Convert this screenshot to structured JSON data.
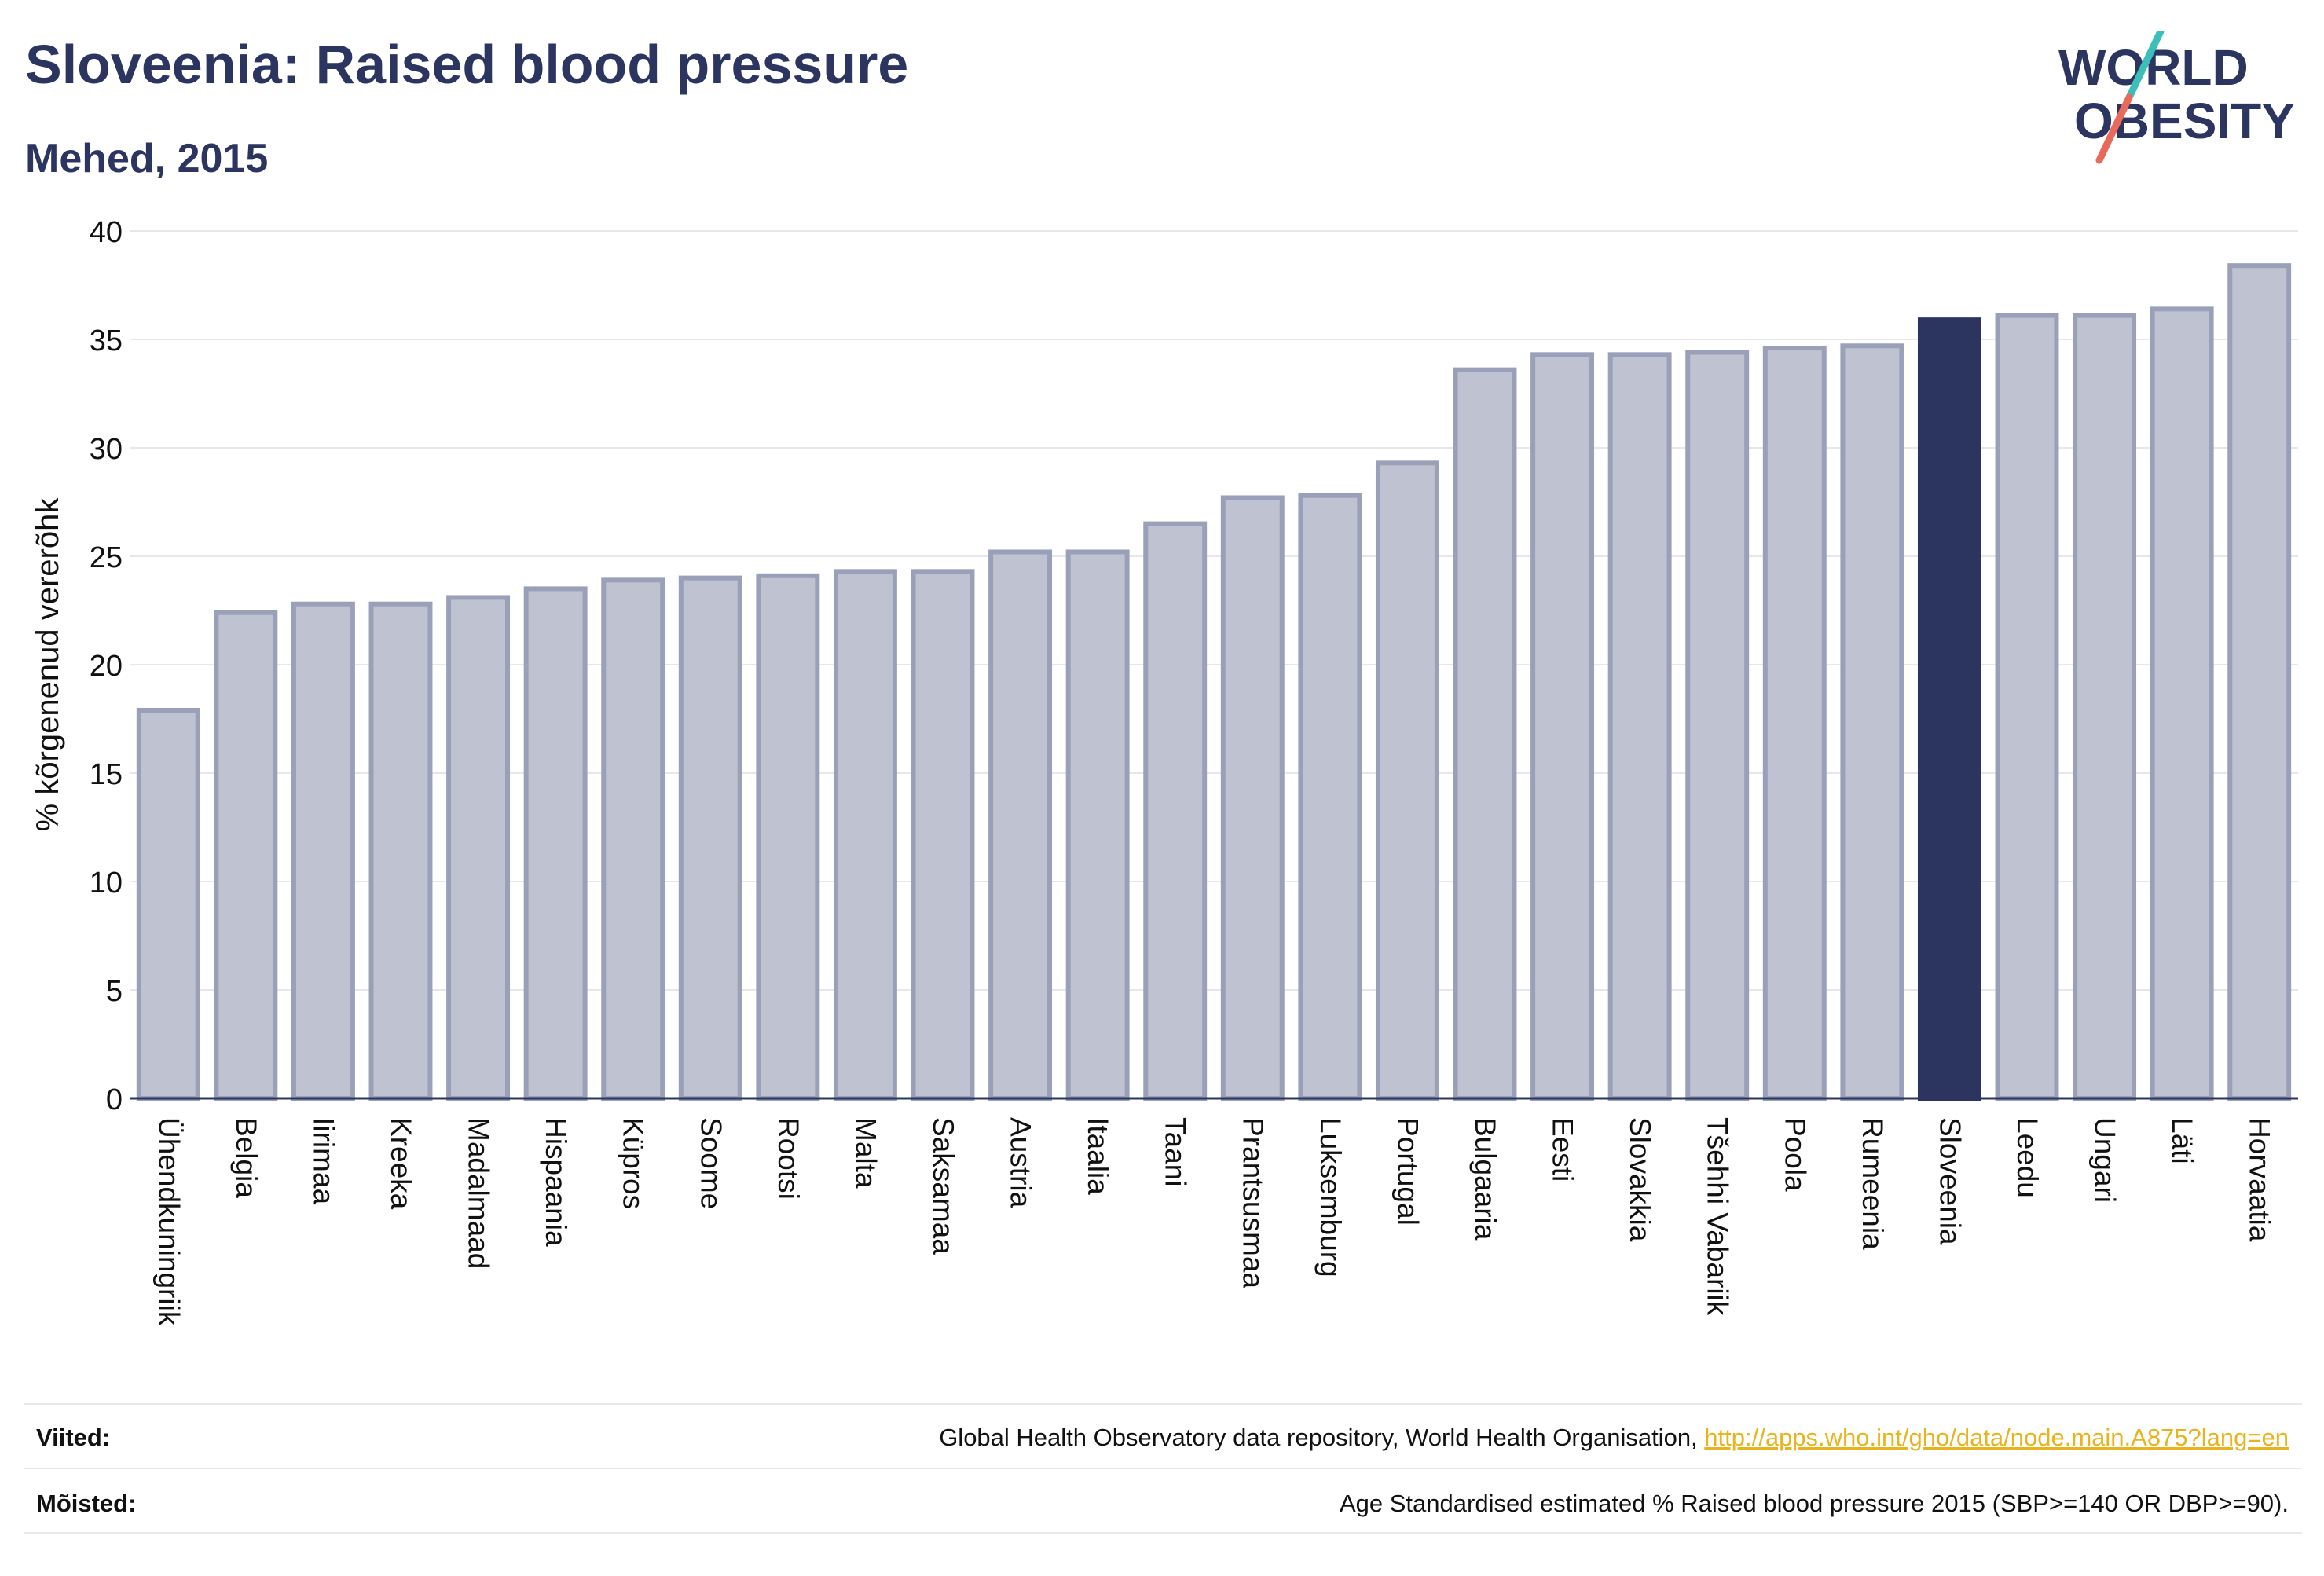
{
  "title": "Sloveenia: Raised blood pressure",
  "subtitle": "Mehed, 2015",
  "logo": {
    "line1": "WORLD",
    "line2": "OBESITY"
  },
  "colors": {
    "bar": "#bfc2d0",
    "bar_border": "#9aa0b8",
    "highlight": "#2b355f",
    "grid": "#e6e6ec",
    "text": "#2b355f"
  },
  "chart_data": {
    "type": "bar",
    "ylabel": "% kõrgenenud vererõhk",
    "xlabel": "",
    "ylim": [
      0,
      40
    ],
    "yticks": [
      0,
      5,
      10,
      15,
      20,
      25,
      30,
      35,
      40
    ],
    "grid": true,
    "highlight": "Sloveenia",
    "categories": [
      "Ühendkuningriik",
      "Belgia",
      "Iirimaa",
      "Kreeka",
      "Madalmaad",
      "Hispaania",
      "Küpros",
      "Soome",
      "Rootsi",
      "Malta",
      "Saksamaa",
      "Austria",
      "Itaalia",
      "Taani",
      "Prantsusmaa",
      "Luksemburg",
      "Portugal",
      "Bulgaaria",
      "Eesti",
      "Slovakkia",
      "Tšehhi Vabariik",
      "Poola",
      "Rumeenia",
      "Sloveenia",
      "Leedu",
      "Ungari",
      "Läti",
      "Horvaatia"
    ],
    "values": [
      17.9,
      22.4,
      22.8,
      22.8,
      23.1,
      23.5,
      23.9,
      24.0,
      24.1,
      24.3,
      24.3,
      25.2,
      25.2,
      26.5,
      27.7,
      27.8,
      29.3,
      33.6,
      34.3,
      34.3,
      34.4,
      34.6,
      34.7,
      35.9,
      36.1,
      36.1,
      36.4,
      38.4
    ]
  },
  "footer": {
    "sources_label": "Viited:",
    "sources_text": "Global Health Observatory data repository, World Health Organisation, ",
    "sources_link": "http://apps.who.int/gho/data/node.main.A875?lang=en",
    "definitions_label": "Mõisted:",
    "definitions_text": "Age Standardised estimated % Raised blood pressure 2015 (SBP>=140 OR DBP>=90)."
  }
}
